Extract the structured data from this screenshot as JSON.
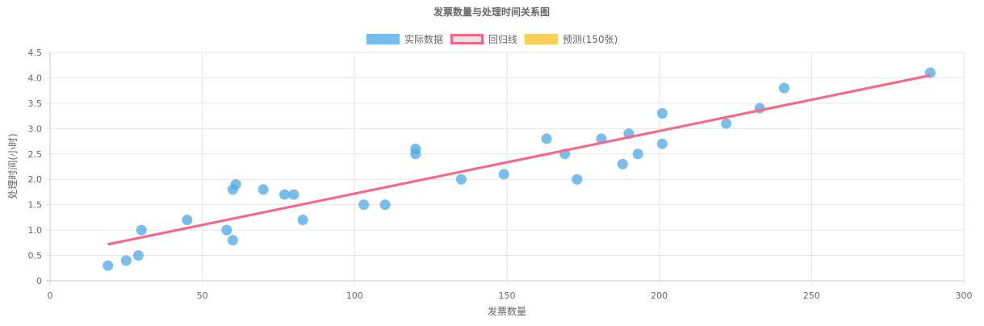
{
  "chart_data": {
    "type": "scatter",
    "title": "发票数量与处理时间关系图",
    "xlabel": "发票数量",
    "ylabel": "处理时间(小时)",
    "xlim": [
      0,
      300
    ],
    "ylim": [
      0,
      4.5
    ],
    "xticks": [
      "0",
      "50",
      "100",
      "150",
      "200",
      "250",
      "300"
    ],
    "yticks": [
      "0",
      "0.5",
      "1.0",
      "1.5",
      "2.0",
      "2.5",
      "3.0",
      "3.5",
      "4.0",
      "4.5"
    ],
    "grid": true,
    "legend_position": "top-center",
    "legend": [
      {
        "label": "实际数据",
        "color": "#74bdee",
        "border": "#74bdee"
      },
      {
        "label": "回归线",
        "color": "#e5e5e5",
        "border": "#ff6384"
      },
      {
        "label": "预测(150张)",
        "color": "#ffce56",
        "border": "#ffce56"
      }
    ],
    "series": [
      {
        "name": "实际数据",
        "type": "scatter",
        "color": "#4aa8e8",
        "points": [
          [
            19,
            0.3
          ],
          [
            25,
            0.4
          ],
          [
            29,
            0.5
          ],
          [
            30,
            1.0
          ],
          [
            45,
            1.2
          ],
          [
            58,
            1.0
          ],
          [
            60,
            1.8
          ],
          [
            60,
            0.8
          ],
          [
            61,
            1.9
          ],
          [
            70,
            1.8
          ],
          [
            77,
            1.7
          ],
          [
            80,
            1.7
          ],
          [
            83,
            1.2
          ],
          [
            103,
            1.5
          ],
          [
            110,
            1.5
          ],
          [
            120,
            2.6
          ],
          [
            120,
            2.5
          ],
          [
            135,
            2.0
          ],
          [
            149,
            2.1
          ],
          [
            163,
            2.8
          ],
          [
            169,
            2.5
          ],
          [
            173,
            2.0
          ],
          [
            181,
            2.8
          ],
          [
            188,
            2.3
          ],
          [
            190,
            2.9
          ],
          [
            193,
            2.5
          ],
          [
            201,
            3.3
          ],
          [
            201,
            2.7
          ],
          [
            222,
            3.1
          ],
          [
            233,
            3.4
          ],
          [
            241,
            3.8
          ],
          [
            289,
            4.1
          ]
        ]
      },
      {
        "name": "回归线",
        "type": "line",
        "color": "#ff6384",
        "points": [
          [
            19,
            0.72
          ],
          [
            289,
            4.05
          ]
        ]
      },
      {
        "name": "预测(150张)",
        "type": "scatter",
        "color": "#ffce56",
        "points": []
      }
    ]
  }
}
